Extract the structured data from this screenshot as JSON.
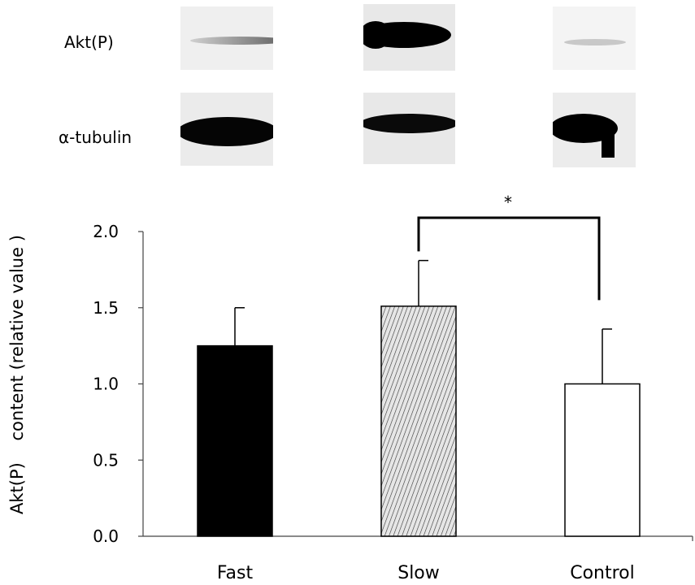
{
  "blots": {
    "rows": [
      {
        "label": "Akt(P)"
      },
      {
        "label": "α-tubulin"
      }
    ]
  },
  "chart_data": {
    "type": "bar",
    "categories": [
      "Fast",
      "Slow",
      "Control"
    ],
    "values": [
      1.25,
      1.51,
      1.0
    ],
    "errors": [
      0.25,
      0.3,
      0.36
    ],
    "fills": [
      "solid-black",
      "hatched",
      "white"
    ],
    "ylabel": "Akt(P)    content (relative value )",
    "xlabel": "",
    "ylim": [
      0,
      2.0
    ],
    "yticks": [
      "0.0",
      "0.5",
      "1.0",
      "1.5",
      "2.0"
    ],
    "ytick_values": [
      0,
      0.5,
      1.0,
      1.5,
      2.0
    ],
    "significance": {
      "from": "Slow",
      "to": "Control",
      "label": "*"
    },
    "grid": false
  }
}
